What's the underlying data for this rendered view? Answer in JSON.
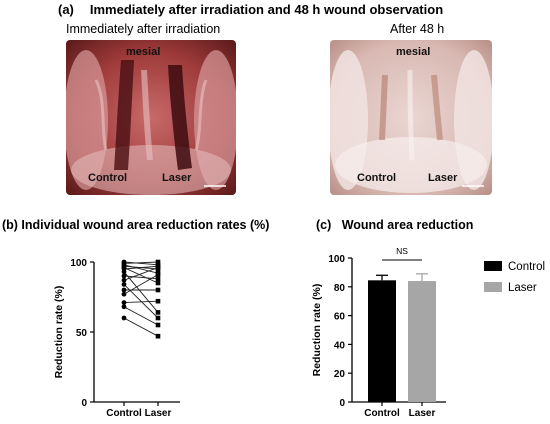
{
  "panel_a": {
    "letter": "(a)",
    "title": "Immediately after irradiation and 48 h wound observation",
    "left_photo": {
      "caption": "Immediately after irradiation",
      "mesial_label": "mesial",
      "control_label": "Control",
      "laser_label": "Laser"
    },
    "right_photo": {
      "caption": "After 48 h",
      "mesial_label": "mesial",
      "control_label": "Control",
      "laser_label": "Laser"
    }
  },
  "panel_b": {
    "title": "(b) Individual wound area reduction rates (%)"
  },
  "panel_c": {
    "letter": "(c)",
    "title": "Wound area reduction",
    "annotation": "NS"
  },
  "colors": {
    "control": "#000000",
    "laser": "#a6a6a6"
  },
  "chart_data": [
    {
      "type": "line",
      "categories": [
        "Control",
        "Laser"
      ],
      "ylabel": "Reduction rate (%)",
      "ylim": [
        0,
        100
      ],
      "yticks": [
        0,
        50,
        100
      ],
      "series": [
        {
          "values": [
            100,
            98
          ]
        },
        {
          "values": [
            99,
            100
          ]
        },
        {
          "values": [
            98,
            92
          ]
        },
        {
          "values": [
            97,
            95
          ]
        },
        {
          "values": [
            96,
            85
          ]
        },
        {
          "values": [
            95,
            97
          ]
        },
        {
          "values": [
            93,
            64
          ]
        },
        {
          "values": [
            90,
            88
          ]
        },
        {
          "values": [
            87,
            96
          ]
        },
        {
          "values": [
            84,
            60
          ]
        },
        {
          "values": [
            80,
            80
          ]
        },
        {
          "values": [
            77,
            91
          ]
        },
        {
          "values": [
            71,
            72
          ]
        },
        {
          "values": [
            68,
            55
          ]
        },
        {
          "values": [
            60,
            47
          ]
        }
      ]
    },
    {
      "type": "bar",
      "categories": [
        "Control",
        "Laser"
      ],
      "values": [
        84.5,
        84.0
      ],
      "error": [
        3.5,
        5.0
      ],
      "ylabel": "Reduction rate (%)",
      "ylim": [
        0,
        100
      ],
      "yticks": [
        0,
        20,
        40,
        60,
        80,
        100
      ],
      "legend": [
        "Control",
        "Laser"
      ],
      "legend_position": "right",
      "annotation": "NS"
    }
  ]
}
